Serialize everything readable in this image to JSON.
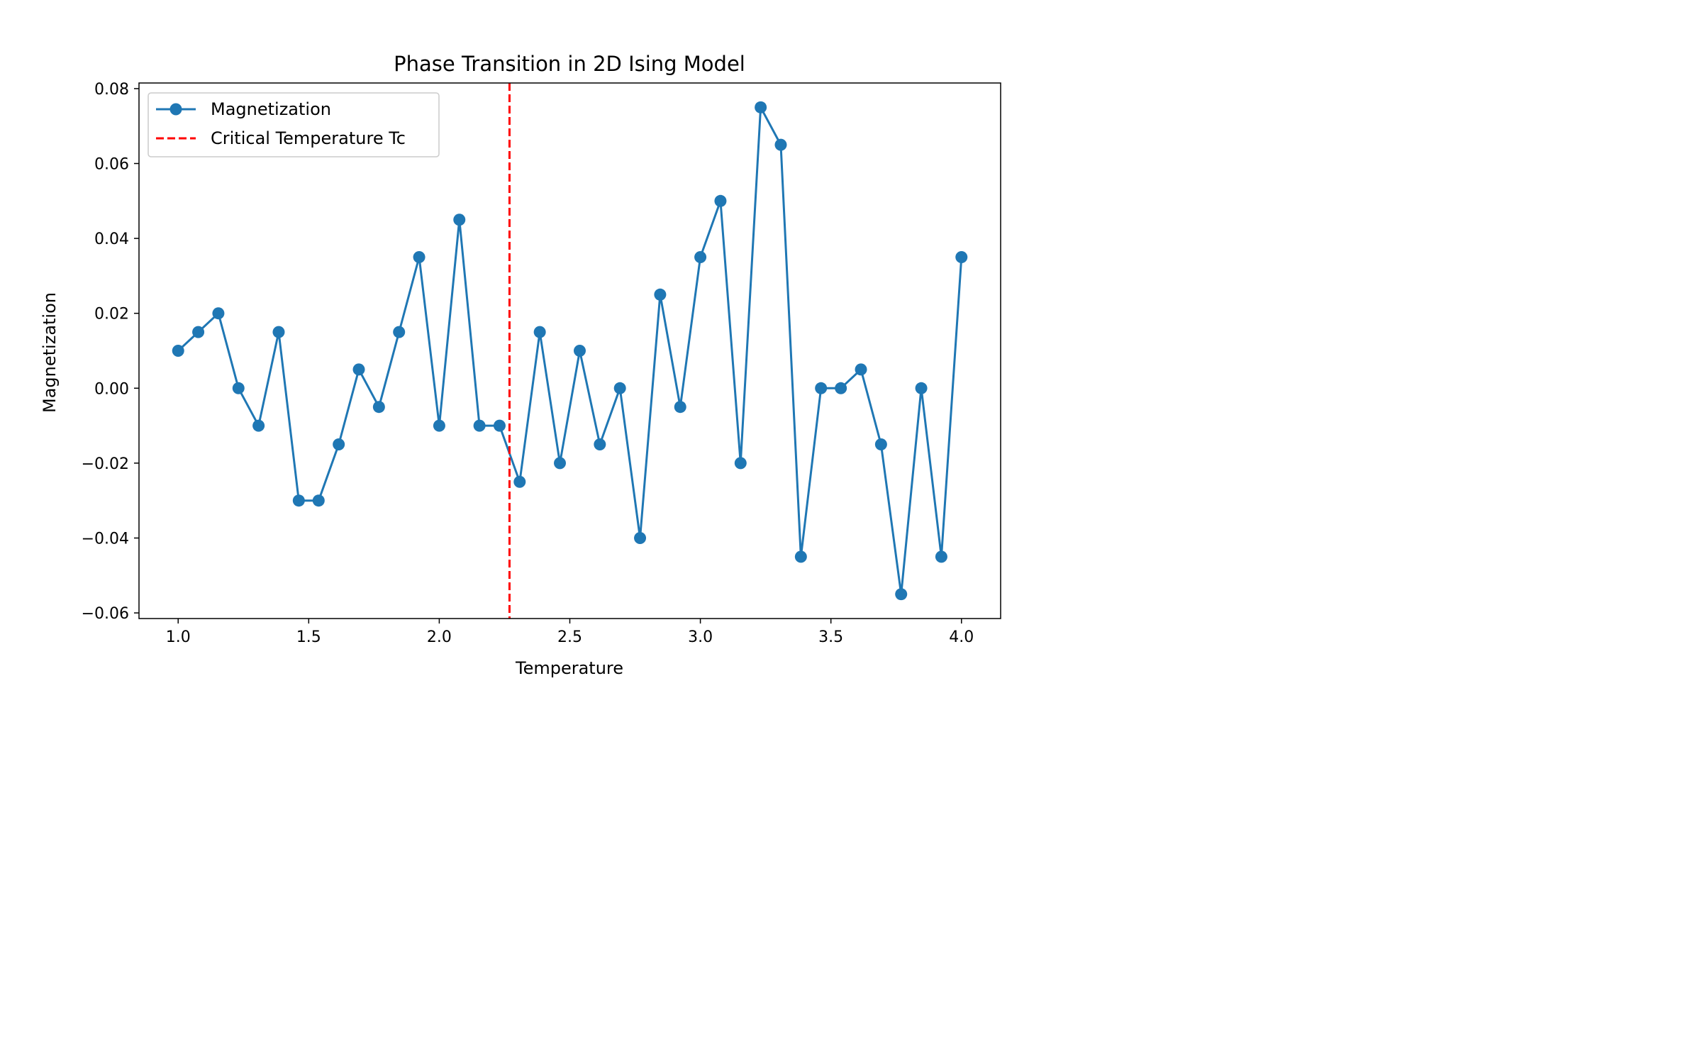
{
  "chart_data": {
    "type": "line",
    "title": "Phase Transition in 2D Ising Model",
    "xlabel": "Temperature",
    "ylabel": "Magnetization",
    "xlim": [
      0.85,
      4.15
    ],
    "ylim": [
      -0.0615,
      0.0815
    ],
    "x_ticks": [
      1.0,
      1.5,
      2.0,
      2.5,
      3.0,
      3.5,
      4.0
    ],
    "x_tick_labels": [
      "1.0",
      "1.5",
      "2.0",
      "2.5",
      "3.0",
      "3.5",
      "4.0"
    ],
    "y_ticks": [
      -0.06,
      -0.04,
      -0.02,
      0.0,
      0.02,
      0.04,
      0.06,
      0.08
    ],
    "y_tick_labels": [
      "−0.06",
      "−0.04",
      "−0.02",
      "0.00",
      "0.02",
      "0.04",
      "0.06",
      "0.08"
    ],
    "grid": false,
    "legend_position": "upper-left",
    "series": [
      {
        "name": "Magnetization",
        "color": "#1f77b4",
        "style": "solid-with-markers",
        "x": [
          1.0,
          1.077,
          1.154,
          1.231,
          1.308,
          1.385,
          1.462,
          1.538,
          1.615,
          1.692,
          1.769,
          1.846,
          1.923,
          2.0,
          2.077,
          2.154,
          2.231,
          2.308,
          2.385,
          2.462,
          2.538,
          2.615,
          2.692,
          2.769,
          2.846,
          2.923,
          3.0,
          3.077,
          3.154,
          3.231,
          3.308,
          3.385,
          3.462,
          3.538,
          3.615,
          3.692,
          3.769,
          3.846,
          3.923,
          4.0
        ],
        "y": [
          0.01,
          0.015,
          0.02,
          0.0,
          -0.01,
          0.015,
          -0.03,
          -0.03,
          -0.015,
          0.005,
          -0.005,
          0.015,
          0.035,
          -0.01,
          0.045,
          -0.01,
          -0.01,
          -0.025,
          0.015,
          -0.02,
          0.01,
          -0.015,
          0.0,
          -0.04,
          0.025,
          -0.005,
          0.035,
          0.05,
          -0.02,
          0.075,
          0.065,
          -0.045,
          0.0,
          0.0,
          0.005,
          -0.015,
          -0.055,
          0.0,
          -0.045,
          0.035
        ]
      },
      {
        "name": "Critical Temperature Tc",
        "color": "#ff0000",
        "style": "dashed-vertical",
        "x": [
          2.269
        ]
      }
    ]
  }
}
